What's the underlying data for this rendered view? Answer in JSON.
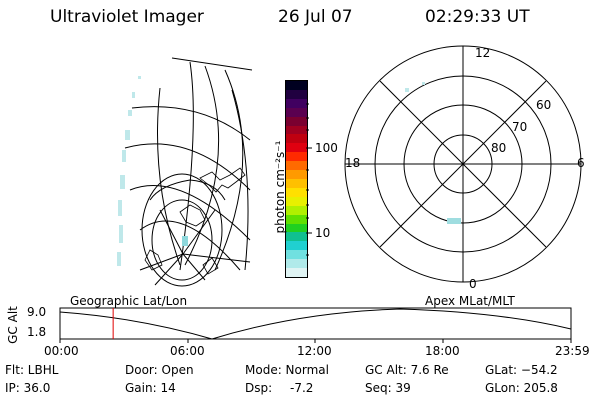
{
  "header": {
    "instrument": "Ultraviolet Imager",
    "date": "26 Jul 07",
    "time": "02:29:33 UT"
  },
  "colorbar": {
    "unit_label": "photon cm⁻²s⁻¹",
    "ticks": [
      "100",
      "10"
    ],
    "colors": [
      "#000020",
      "#200040",
      "#400060",
      "#5a0050",
      "#7a0030",
      "#a00020",
      "#c00010",
      "#e00010",
      "#ff2a00",
      "#ff6a00",
      "#ff9a00",
      "#ffc000",
      "#ffe000",
      "#e8f000",
      "#b0f000",
      "#60e000",
      "#20d020",
      "#10c090",
      "#20d0d0",
      "#70e0e0",
      "#b0eaea",
      "#e0f4f4"
    ]
  },
  "polar_plot": {
    "mlt_labels": [
      "12",
      "18",
      "6",
      "0"
    ],
    "lat_labels": [
      "60",
      "70",
      "80"
    ]
  },
  "altitude_panel": {
    "left_label": "Geographic Lat/Lon",
    "right_label": "Apex MLat/MLT",
    "axis_label": "GC Alt",
    "y_ticks": [
      "9.0",
      "1.8"
    ],
    "x_ticks": [
      "00:00",
      "06:00",
      "12:00",
      "18:00",
      "23:59"
    ],
    "current_time_fraction": 0.104
  },
  "status": {
    "filter": "Flt: LBHL",
    "ip": "IP: 36.0",
    "door": "Door: Open",
    "gain": "Gain: 14",
    "mode": "Mode: Normal",
    "dsp": "Dsp:",
    "dsp_value": "-7.2",
    "gc_alt": "GC Alt: 7.6 Re",
    "seq": "Seq: 39",
    "glat": "GLat: −54.2",
    "glon": "GLon: 205.8"
  }
}
